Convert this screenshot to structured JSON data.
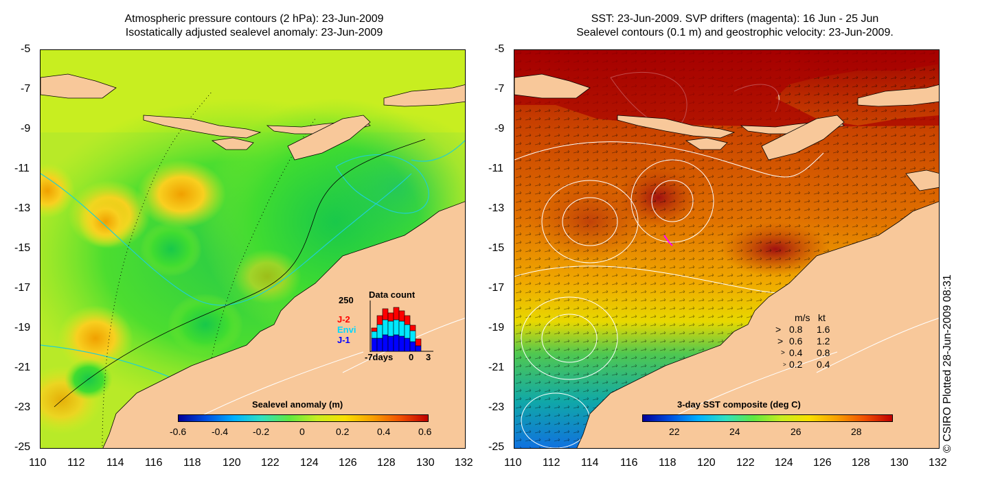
{
  "left": {
    "title_line1": "Atmospheric pressure contours (2 hPa): 23-Jun-2009",
    "title_line2": "Isostatically adjusted sealevel anomaly: 23-Jun-2009",
    "colorbar_label": "Sealevel anomaly (m)",
    "colorbar_ticks": [
      "-0.6",
      "-0.4",
      "-0.2",
      "0",
      "0.2",
      "0.4",
      "0.6"
    ],
    "data_count": {
      "title": "Data count",
      "ymax_label": "250",
      "legend": [
        "J-2",
        "Envi",
        "J-1"
      ],
      "legend_colors": [
        "#ff0000",
        "#00d8ff",
        "#0000ff"
      ],
      "x_labels": [
        "-7days",
        "0",
        "3"
      ]
    }
  },
  "right": {
    "title_line1": "SST: 23-Jun-2009. SVP drifters (magenta): 16 Jun - 25 Jun",
    "title_line2": "Sealevel contours (0.1 m) and geostrophic velocity: 23-Jun-2009.",
    "colorbar_label": "3-day SST composite (deg C)",
    "colorbar_ticks": [
      "22",
      "24",
      "26",
      "28"
    ],
    "velocity_legend": {
      "header_ms": "m/s",
      "header_kt": "kt",
      "rows": [
        {
          "ms": "0.8",
          "kt": "1.6"
        },
        {
          "ms": "0.6",
          "kt": "1.2"
        },
        {
          "ms": "0.4",
          "kt": "0.8"
        },
        {
          "ms": "0.2",
          "kt": "0.4"
        }
      ]
    }
  },
  "axes": {
    "y_ticks": [
      "-5",
      "-7",
      "-9",
      "-11",
      "-13",
      "-15",
      "-17",
      "-19",
      "-21",
      "-23",
      "-25"
    ],
    "x_ticks": [
      "110",
      "112",
      "114",
      "116",
      "118",
      "120",
      "122",
      "124",
      "126",
      "128",
      "130",
      "132"
    ]
  },
  "credit": "© CSIRO Plotted 28-Jun-2009 08:31",
  "colors": {
    "land": "#f8c89a",
    "ocean_base_left": "#b4f028",
    "ocean_base_right": "#e07800"
  }
}
